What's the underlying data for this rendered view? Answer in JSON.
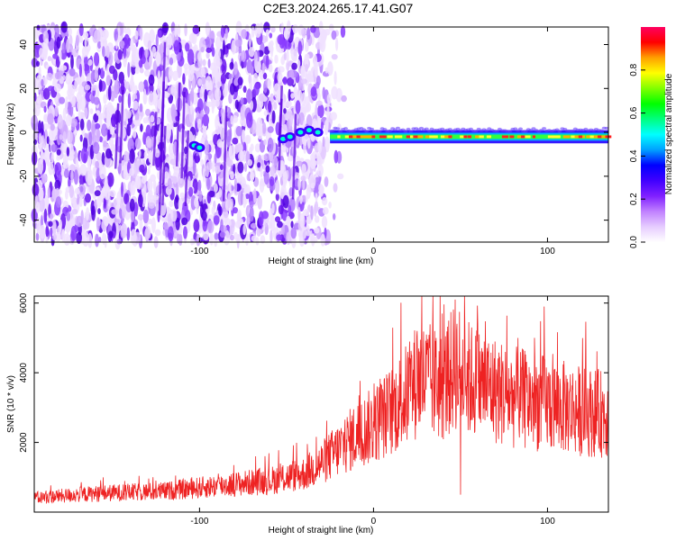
{
  "title": "C2E3.2024.265.17.41.G07",
  "chart_data": [
    {
      "type": "heatmap",
      "xlabel": "Height of straight line (km)",
      "ylabel": "Frequency (Hz)",
      "xlim": [
        -195,
        135
      ],
      "ylim": [
        -50,
        48
      ],
      "xticks": [
        -100,
        0,
        100
      ],
      "yticks": [
        -40,
        -20,
        0,
        20,
        40
      ],
      "colorbar": {
        "label": "Normalized spectral amplitude",
        "range": [
          0,
          1
        ],
        "ticks": [
          0.0,
          0.2,
          0.4,
          0.6,
          0.8
        ],
        "colors": [
          "#ffffff",
          "#e6ccff",
          "#c080ff",
          "#8020ff",
          "#4000ff",
          "#0000ff",
          "#00a0ff",
          "#00ffff",
          "#00ff80",
          "#00ff00",
          "#80ff00",
          "#ffff00",
          "#ffa000",
          "#ff0000",
          "#ff0060"
        ]
      },
      "features": {
        "band_center_hz": -2,
        "band_start_km": -25,
        "noise_end_km": -20
      }
    },
    {
      "type": "line",
      "xlabel": "Height of straight line (km)",
      "ylabel": "SNR (10 * v/v)",
      "xlim": [
        -195,
        135
      ],
      "ylim": [
        0,
        6200
      ],
      "xticks": [
        -100,
        0,
        100
      ],
      "yticks": [
        2000,
        4000,
        6000
      ],
      "color": "#ee2222",
      "envelope": {
        "x": [
          -195,
          -170,
          -150,
          -120,
          -100,
          -80,
          -60,
          -40,
          -30,
          -20,
          -10,
          0,
          10,
          20,
          25,
          30,
          40,
          47,
          55,
          60,
          70,
          80,
          90,
          100,
          110,
          120,
          135
        ],
        "y": [
          400,
          500,
          550,
          600,
          700,
          800,
          900,
          1100,
          1400,
          1800,
          2200,
          2500,
          2900,
          3400,
          3800,
          3800,
          3600,
          4200,
          3800,
          3700,
          3500,
          3300,
          3200,
          3100,
          3000,
          2900,
          2800
        ]
      },
      "peaks": [
        {
          "x": 47,
          "y": 6100
        },
        {
          "x": 98,
          "y": 5900
        },
        {
          "x": 25,
          "y": 5200
        },
        {
          "x": 36,
          "y": 5000
        },
        {
          "x": 60,
          "y": 5400
        },
        {
          "x": 83,
          "y": 5000
        },
        {
          "x": 50,
          "y": 500
        }
      ]
    }
  ]
}
